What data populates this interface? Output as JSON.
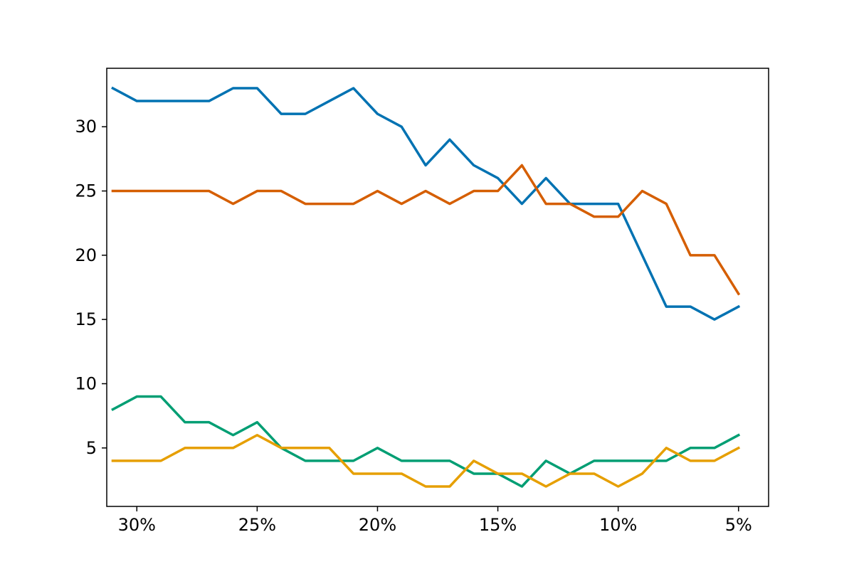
{
  "chart_data": {
    "type": "line",
    "title": "",
    "xlabel": "",
    "ylabel": "",
    "x_reversed": true,
    "xlim": [
      31.25,
      3.75
    ],
    "ylim": [
      0.45,
      34.55
    ],
    "x_ticks": [
      {
        "value": 30,
        "label": "30%"
      },
      {
        "value": 25,
        "label": "25%"
      },
      {
        "value": 20,
        "label": "20%"
      },
      {
        "value": 15,
        "label": "15%"
      },
      {
        "value": 10,
        "label": "10%"
      },
      {
        "value": 5,
        "label": "5%"
      }
    ],
    "y_ticks": [
      {
        "value": 5,
        "label": "5"
      },
      {
        "value": 10,
        "label": "10"
      },
      {
        "value": 15,
        "label": "15"
      },
      {
        "value": 20,
        "label": "20"
      },
      {
        "value": 25,
        "label": "25"
      },
      {
        "value": 30,
        "label": "30"
      }
    ],
    "grid": false,
    "legend": "none",
    "x": [
      31,
      30,
      29,
      28,
      27,
      26,
      25,
      24,
      23,
      22,
      21,
      20,
      19,
      18,
      17,
      16,
      15,
      14,
      13,
      12,
      11,
      10,
      9,
      8,
      7,
      6,
      5
    ],
    "series": [
      {
        "color": "#0072b2",
        "values": [
          33,
          32,
          32,
          32,
          32,
          33,
          33,
          31,
          31,
          32,
          33,
          31,
          30,
          27,
          29,
          27,
          26,
          24,
          26,
          24,
          24,
          24,
          20,
          16,
          16,
          15,
          16
        ]
      },
      {
        "color": "#d55e00",
        "values": [
          25,
          25,
          25,
          25,
          25,
          24,
          25,
          25,
          24,
          24,
          24,
          25,
          24,
          25,
          24,
          25,
          25,
          27,
          24,
          24,
          23,
          23,
          25,
          24,
          20,
          20,
          17
        ]
      },
      {
        "color": "#009e73",
        "values": [
          8,
          9,
          9,
          7,
          7,
          6,
          7,
          5,
          4,
          4,
          4,
          5,
          4,
          4,
          4,
          3,
          3,
          2,
          4,
          3,
          4,
          4,
          4,
          4,
          5,
          5,
          6
        ]
      },
      {
        "color": "#e69f00",
        "values": [
          4,
          4,
          4,
          5,
          5,
          5,
          6,
          5,
          5,
          5,
          3,
          3,
          3,
          2,
          2,
          4,
          3,
          3,
          2,
          3,
          3,
          2,
          3,
          5,
          4,
          4,
          5
        ]
      }
    ]
  }
}
